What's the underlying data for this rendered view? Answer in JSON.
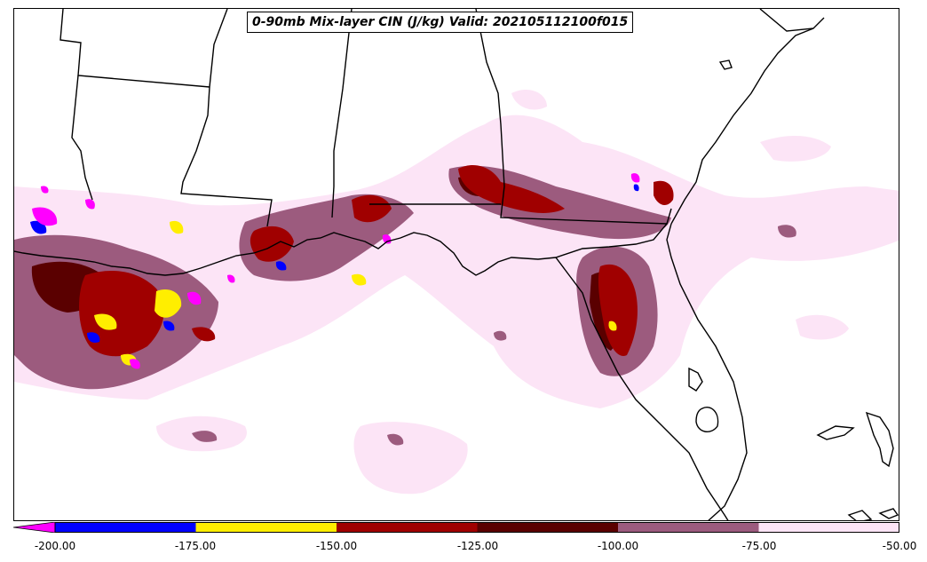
{
  "title": "0-90mb Mix-layer CIN (J/kg) Valid: 202105112100f015",
  "colorbar": {
    "levels": [
      "-200.00",
      "-175.00",
      "-150.00",
      "-125.00",
      "-100.00",
      "-75.00",
      "-50.00"
    ],
    "colors": [
      "#0000ff",
      "#ffee00",
      "#a00000",
      "#5a0000",
      "#9c5b7e",
      "#fce4f6"
    ],
    "under_color": "#ff00ff"
  },
  "palette": {
    "magenta": "#ff00ff",
    "blue": "#0000ff",
    "yellow": "#ffee00",
    "red": "#a00000",
    "darkred": "#5a0000",
    "mauve": "#9c5b7e",
    "lightpink": "#fce4f6",
    "boundary": "#000000"
  }
}
